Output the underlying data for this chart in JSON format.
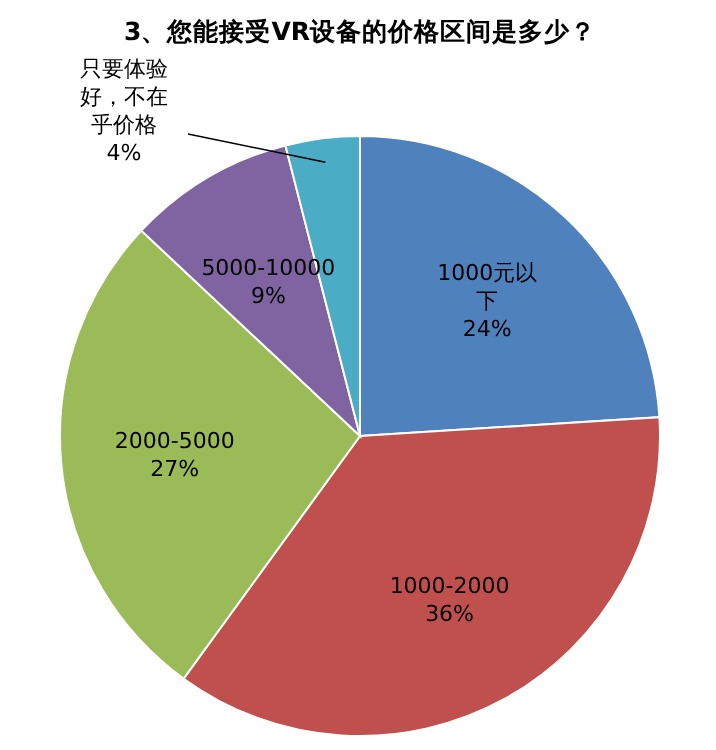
{
  "chart_data": {
    "type": "pie",
    "title": "3、您能接受VR设备的价格区间是多少？",
    "categories": [
      "1000元以下",
      "1000-2000",
      "2000-5000",
      "5000-10000",
      "只要体验好，不在乎价格"
    ],
    "values": [
      24,
      36,
      27,
      9,
      4
    ],
    "value_labels": [
      "24%",
      "36%",
      "27%",
      "9%",
      "4%"
    ],
    "colors": [
      "#4f81bd",
      "#c0504d",
      "#9bbb59",
      "#8064a2",
      "#4bacc6"
    ]
  }
}
